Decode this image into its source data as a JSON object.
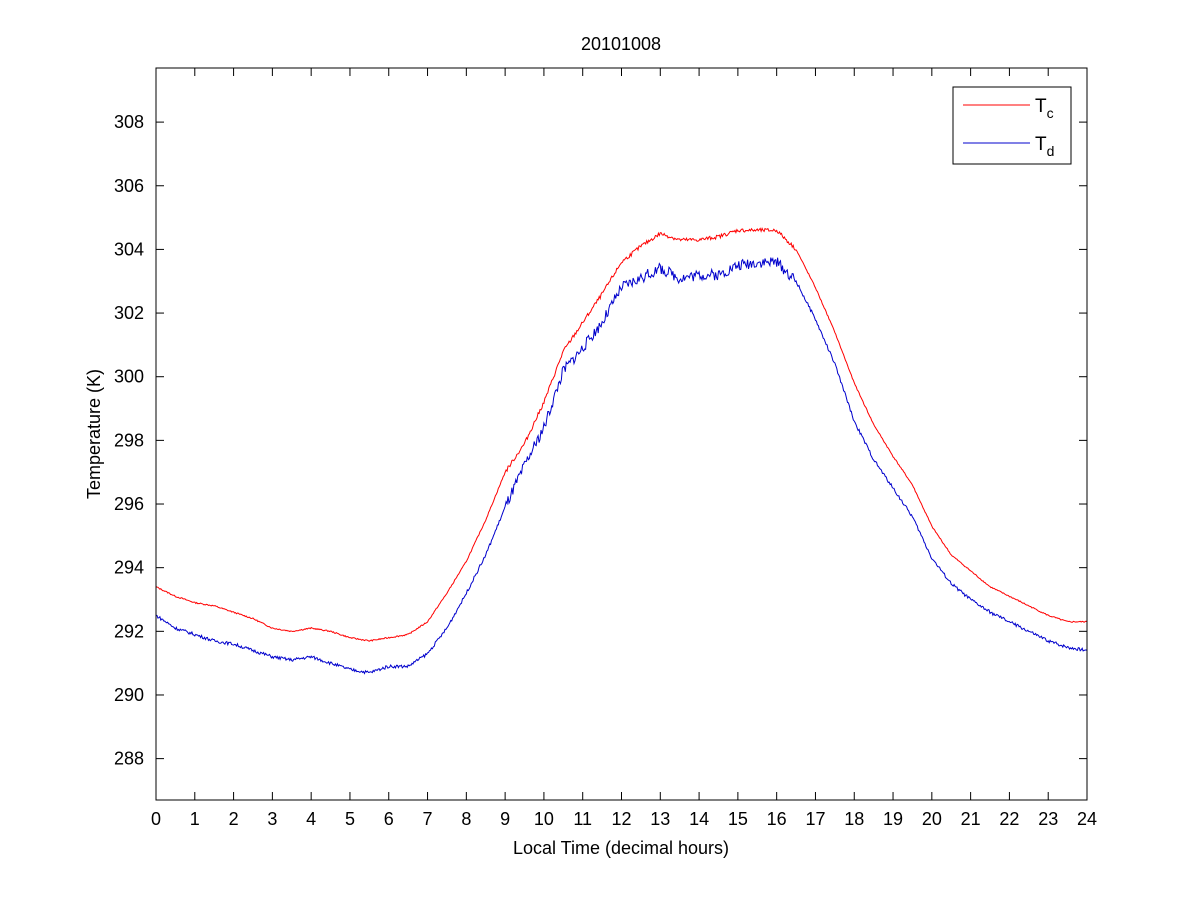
{
  "chart_data": {
    "type": "line",
    "title": "20101008",
    "xlabel": "Local Time (decimal hours)",
    "ylabel": "Temperature (K)",
    "xlim": [
      0,
      24
    ],
    "ylim": [
      286.7,
      309.7
    ],
    "xticks": [
      0,
      1,
      2,
      3,
      4,
      5,
      6,
      7,
      8,
      9,
      10,
      11,
      12,
      13,
      14,
      15,
      16,
      17,
      18,
      19,
      20,
      21,
      22,
      23,
      24
    ],
    "yticks": [
      288,
      290,
      292,
      294,
      296,
      298,
      300,
      302,
      304,
      306,
      308
    ],
    "grid": false,
    "legend_position": "top-right",
    "x": [
      0,
      0.5,
      1,
      1.5,
      2,
      2.5,
      3,
      3.5,
      4,
      4.5,
      5,
      5.5,
      6,
      6.5,
      7,
      7.5,
      8,
      8.5,
      9,
      9.5,
      10,
      10.5,
      11,
      11.5,
      12,
      12.5,
      13,
      13.5,
      14,
      14.5,
      15,
      15.5,
      16,
      16.5,
      17,
      17.5,
      18,
      18.5,
      19,
      19.5,
      20,
      20.5,
      21,
      21.5,
      22,
      22.5,
      23,
      23.5,
      24
    ],
    "series": [
      {
        "name": "T",
        "subscript": "c",
        "color": "#ff0000",
        "values": [
          293.4,
          293.1,
          292.9,
          292.8,
          292.6,
          292.4,
          292.1,
          292.0,
          292.1,
          292.0,
          291.8,
          291.7,
          291.8,
          291.9,
          292.3,
          293.2,
          294.2,
          295.5,
          297.0,
          297.9,
          299.2,
          300.8,
          301.7,
          302.6,
          303.6,
          304.1,
          304.5,
          304.3,
          304.3,
          304.4,
          304.6,
          304.6,
          304.6,
          304.0,
          302.8,
          301.4,
          299.8,
          298.5,
          297.5,
          296.6,
          295.3,
          294.4,
          293.9,
          293.4,
          293.1,
          292.8,
          292.5,
          292.3,
          292.3
        ]
      },
      {
        "name": "T",
        "subscript": "d",
        "color": "#0000cc",
        "values": [
          292.5,
          292.1,
          291.9,
          291.7,
          291.6,
          291.4,
          291.2,
          291.1,
          291.2,
          291.0,
          290.8,
          290.7,
          290.9,
          290.9,
          291.3,
          292.1,
          293.2,
          294.4,
          295.9,
          297.2,
          298.4,
          300.2,
          300.9,
          301.7,
          302.8,
          303.1,
          303.4,
          303.1,
          303.2,
          303.2,
          303.5,
          303.6,
          303.6,
          303.0,
          301.8,
          300.4,
          298.6,
          297.4,
          296.5,
          295.6,
          294.3,
          293.5,
          293.0,
          292.6,
          292.3,
          292.0,
          291.7,
          291.5,
          291.4
        ]
      }
    ]
  }
}
